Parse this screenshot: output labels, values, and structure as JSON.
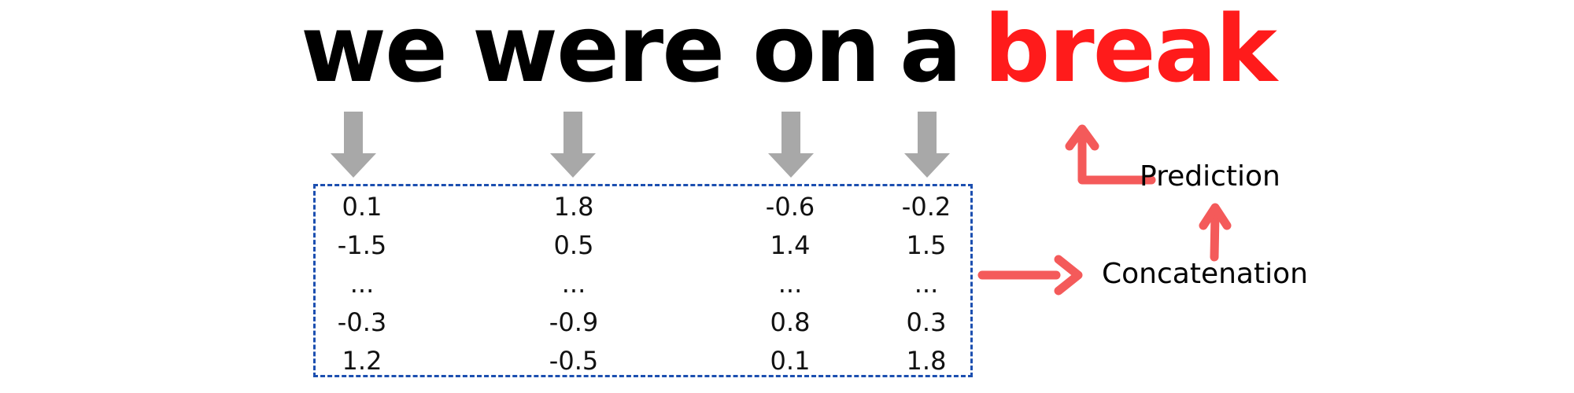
{
  "sentence": {
    "words": [
      "we",
      "were",
      "on",
      "a"
    ],
    "target_word": "break",
    "target_color": "#ff1b1b"
  },
  "vectors": [
    {
      "values": [
        "0.1",
        "-1.5",
        "...",
        "-0.3",
        "1.2"
      ]
    },
    {
      "values": [
        "1.8",
        "0.5",
        "...",
        "-0.9",
        "-0.5"
      ]
    },
    {
      "values": [
        "-0.6",
        "1.4",
        "...",
        "0.8",
        "0.1"
      ]
    },
    {
      "values": [
        "-0.2",
        "1.5",
        "...",
        "0.3",
        "1.8"
      ]
    }
  ],
  "labels": {
    "concatenation": "Concatenation",
    "prediction": "Prediction"
  },
  "colors": {
    "embedding_arrow": "#a8a8a8",
    "flow_arrow": "#f45a5a",
    "box_border": "#1c4fb0"
  }
}
